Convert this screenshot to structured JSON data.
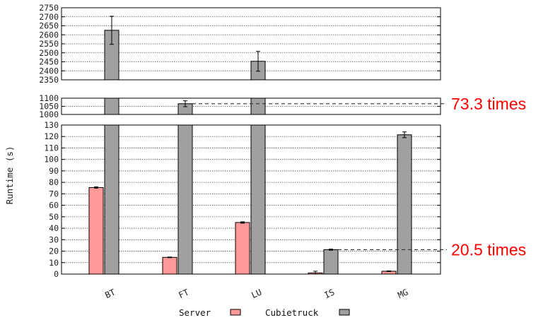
{
  "chart_data": {
    "type": "bar",
    "broken_axis": true,
    "ylabel": "Runtime (s)",
    "categories": [
      "BT",
      "FT",
      "LU",
      "IS",
      "MG"
    ],
    "series": [
      {
        "name": "Server",
        "color": "#ff9999",
        "values": [
          75.5,
          14.6,
          45.0,
          1.0,
          2.5
        ],
        "errors": [
          0.6,
          0.3,
          0.6,
          1.5,
          0.3
        ]
      },
      {
        "name": "Cubietruck",
        "color": "#a0a0a0",
        "values": [
          2625,
          1066,
          2453,
          21.3,
          121.5
        ],
        "errors": [
          78,
          18,
          55,
          0.5,
          2.5
        ]
      }
    ],
    "panels": [
      {
        "ylim": [
          2350,
          2750
        ],
        "ticks": [
          2350,
          2400,
          2450,
          2500,
          2550,
          2600,
          2650,
          2700,
          2750
        ]
      },
      {
        "ylim": [
          1000,
          1100
        ],
        "ticks": [
          1000,
          1050,
          1100
        ]
      },
      {
        "ylim": [
          0,
          130
        ],
        "ticks": [
          0,
          10,
          20,
          30,
          40,
          50,
          60,
          70,
          80,
          90,
          100,
          110,
          120,
          130
        ]
      }
    ],
    "annotations": [
      {
        "text": "73.3 times",
        "y": 1066
      },
      {
        "text": "20.5 times",
        "y": 21.3
      }
    ],
    "grid": true,
    "legend_position": "bottom-center"
  }
}
